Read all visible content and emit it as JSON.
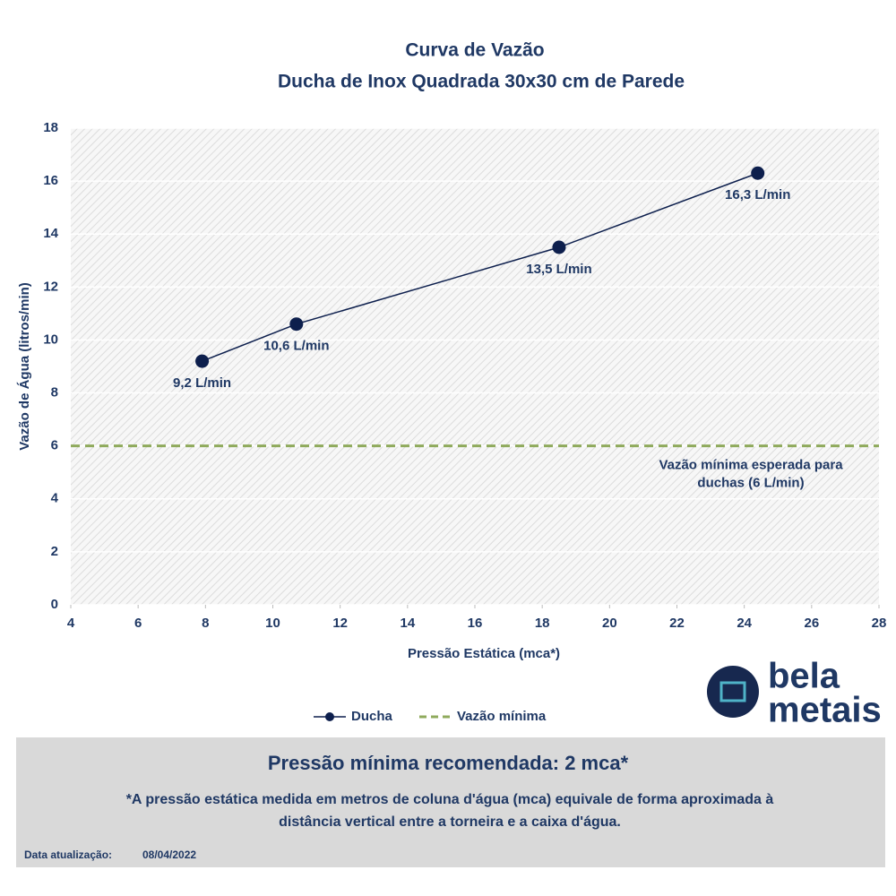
{
  "chart_data": {
    "type": "line",
    "title": "Curva de Vazão",
    "subtitle": "Ducha de Inox Quadrada 30x30 cm de Parede",
    "xlabel": "Pressão Estática (mca*)",
    "ylabel": "Vazão de Água (litros/min)",
    "x": [
      7.9,
      10.7,
      18.5,
      24.4
    ],
    "series": [
      {
        "name": "Ducha",
        "color": "#0d1f4d",
        "values": [
          9.2,
          10.6,
          13.5,
          16.3
        ],
        "value_labels": [
          "9,2 L/min",
          "10,6 L/min",
          "13,5 L/min",
          "16,3 L/min"
        ]
      }
    ],
    "hline": {
      "name": "Vazão mínima",
      "value": 6,
      "color": "#8faa5c",
      "annotation": [
        "Vazão mínima esperada para",
        "duchas (6 L/min)"
      ]
    },
    "xlim": [
      4,
      28
    ],
    "xticks": [
      4,
      6,
      8,
      10,
      12,
      14,
      16,
      18,
      20,
      22,
      24,
      26,
      28
    ],
    "ylim": [
      0,
      18
    ],
    "yticks": [
      0,
      2,
      4,
      6,
      8,
      10,
      12,
      14,
      16,
      18
    ],
    "grid": true,
    "legend": "bottom"
  },
  "logo": {
    "line1": "bela",
    "line2": "metais"
  },
  "footer": {
    "headline": "Pressão mínima recomendada: 2 mca*",
    "note": [
      "*A pressão estática medida em metros de coluna d'água (mca) equivale de forma aproximada à",
      "distância vertical entre a torneira e a caixa d'água."
    ],
    "date_label": "Data atualização:",
    "date": "08/04/2022"
  }
}
